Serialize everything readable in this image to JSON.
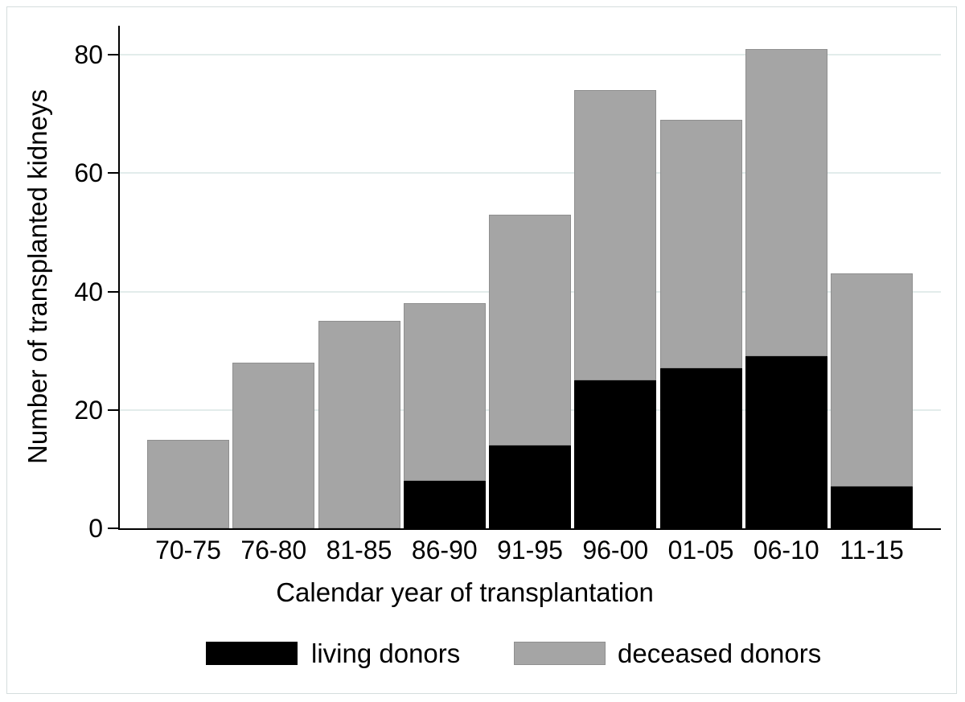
{
  "chart_data": {
    "type": "bar",
    "stacked": true,
    "title": "",
    "xlabel": "Calendar year of transplantation",
    "ylabel": "Number of transplanted kidneys",
    "categories": [
      "70-75",
      "76-80",
      "81-85",
      "86-90",
      "91-95",
      "96-00",
      "01-05",
      "06-10",
      "11-15"
    ],
    "series": [
      {
        "name": "living donors",
        "color": "#000000",
        "values": [
          0,
          0,
          0,
          8,
          14,
          25,
          27,
          29,
          7
        ]
      },
      {
        "name": "deceased donors",
        "color": "#a5a5a5",
        "values": [
          15,
          28,
          35,
          30,
          39,
          49,
          42,
          52,
          36
        ]
      }
    ],
    "stack_totals": [
      15,
      28,
      35,
      38,
      53,
      74,
      69,
      81,
      43
    ],
    "yticks": [
      0,
      20,
      40,
      60,
      80
    ],
    "ylim": [
      0,
      85
    ],
    "grid": "horizontal",
    "grid_color": "#e2eceb",
    "axis_color": "#000000",
    "legend_position": "bottom-center"
  },
  "legend": {
    "items": [
      {
        "label": "living donors",
        "color": "#000000"
      },
      {
        "label": "deceased donors",
        "color": "#a5a5a5"
      }
    ]
  }
}
